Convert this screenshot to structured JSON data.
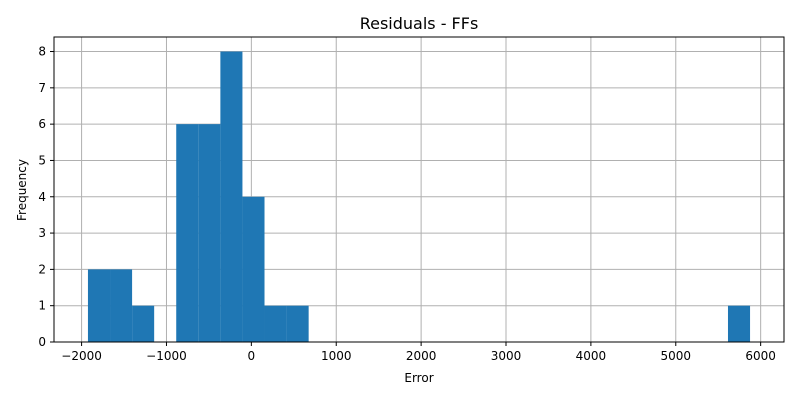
{
  "chart_data": {
    "type": "bar",
    "title": "Residuals - FFs",
    "xlabel": "Error",
    "ylabel": "Frequency",
    "xlim": [
      -2325,
      6275
    ],
    "ylim": [
      0,
      8.4
    ],
    "x_ticks": [
      -2000,
      -1000,
      0,
      1000,
      2000,
      3000,
      4000,
      5000,
      6000
    ],
    "x_tick_labels": [
      "−2000",
      "−1000",
      "0",
      "1000",
      "2000",
      "3000",
      "4000",
      "5000",
      "6000"
    ],
    "y_ticks": [
      0,
      1,
      2,
      3,
      4,
      5,
      6,
      7,
      8
    ],
    "grid": true,
    "bins": {
      "edges": [
        -1925,
        -1665,
        -1405,
        -1145,
        -885,
        -625,
        -365,
        -105,
        155,
        415,
        675,
        935,
        1195,
        1455,
        1715,
        1975,
        2235,
        2495,
        2755,
        3015,
        3275,
        3535,
        3795,
        4055,
        4315,
        4575,
        4835,
        5095,
        5355,
        5615,
        5875
      ],
      "counts": [
        2,
        2,
        1,
        0,
        6,
        6,
        8,
        4,
        1,
        1,
        0,
        0,
        0,
        0,
        0,
        0,
        0,
        0,
        0,
        0,
        0,
        0,
        0,
        0,
        0,
        0,
        0,
        0,
        0,
        1
      ]
    },
    "colors": {
      "bar": "#1f77b4",
      "grid": "#b0b0b0"
    }
  }
}
